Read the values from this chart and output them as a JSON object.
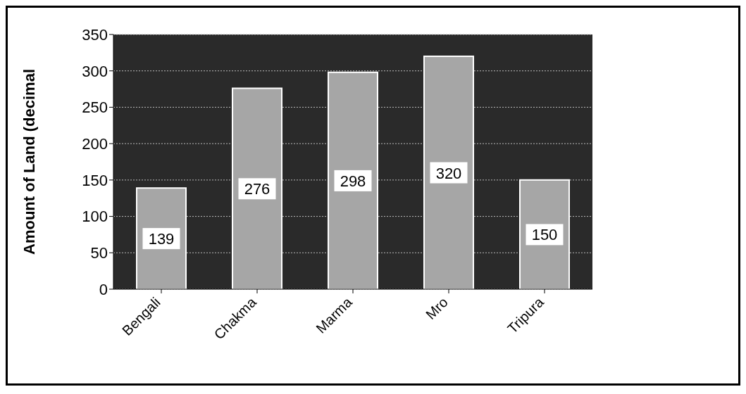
{
  "chart_data": {
    "type": "bar",
    "ylabel": "Amount of Land (decimal",
    "categories": [
      "Bengali",
      "Chakma",
      "Marma",
      "Mro",
      "Tripura"
    ],
    "values": [
      139,
      276,
      298,
      320,
      150
    ],
    "color": "#a6a6a6",
    "ylim": [
      0,
      350
    ],
    "yticks": [
      0,
      50,
      100,
      150,
      200,
      250,
      300,
      350
    ],
    "grid": "y",
    "data_labels": true
  }
}
